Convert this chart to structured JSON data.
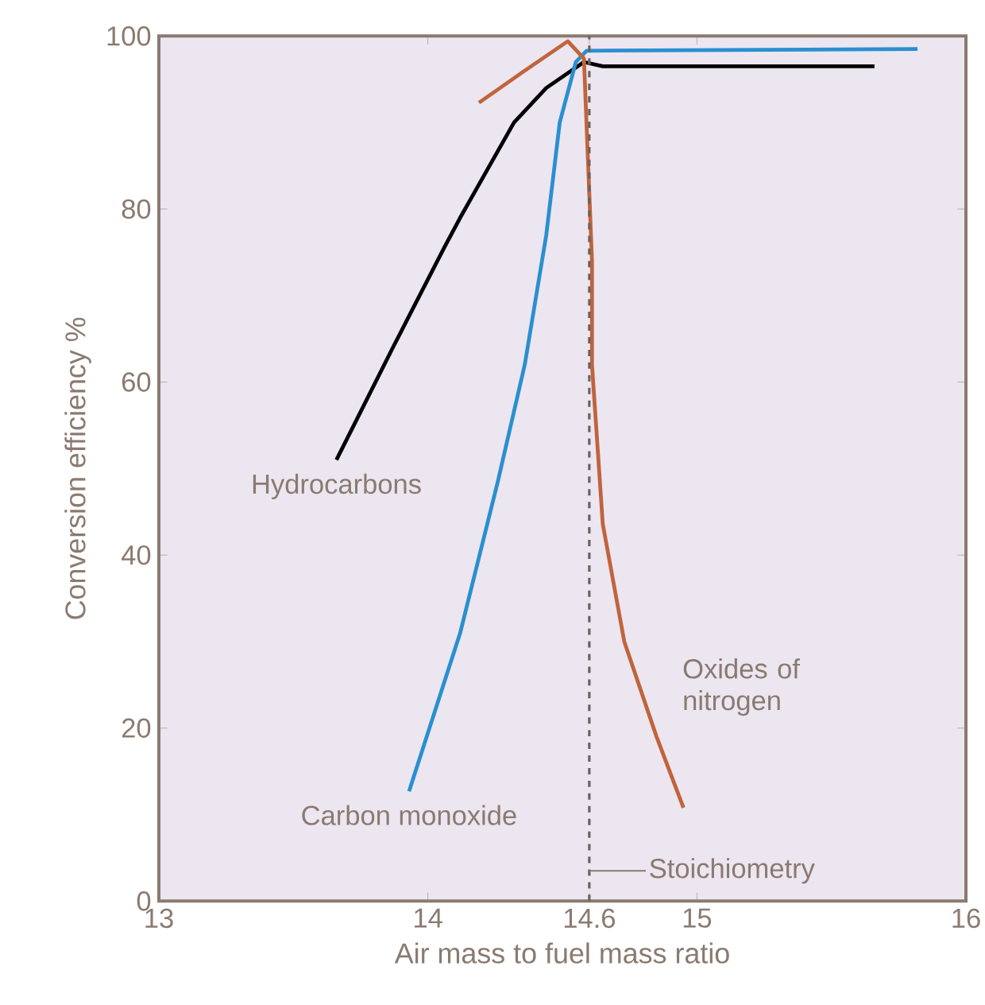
{
  "chart_data": {
    "type": "line",
    "xlabel": "Air mass to fuel mass ratio",
    "ylabel": "Conversion efficiency %",
    "xlim": [
      13,
      16
    ],
    "ylim": [
      0,
      100
    ],
    "xticks": [
      13,
      14,
      14.6,
      15,
      16
    ],
    "yticks": [
      0,
      20,
      40,
      60,
      80,
      100
    ],
    "grid": false,
    "legend": false,
    "marker": "none",
    "line_style": "solid",
    "series": [
      {
        "name": "Hydrocarbons",
        "color": "#000000",
        "x": [
          13.66,
          13.87,
          14.06,
          14.12,
          14.32,
          14.44,
          14.58,
          14.65,
          15.66
        ],
        "values": [
          51,
          64,
          75.5,
          79,
          90,
          94,
          97,
          96.5,
          96.5
        ]
      },
      {
        "name": "Carbon monoxide",
        "color": "#2a8fd0",
        "x": [
          13.93,
          14.12,
          14.26,
          14.36,
          14.44,
          14.49,
          14.55,
          14.59,
          15.82
        ],
        "values": [
          12.7,
          31,
          48.5,
          62,
          77,
          90,
          97,
          98.3,
          98.5
        ]
      },
      {
        "name": "Oxides of nitrogen",
        "color": "#c0643c",
        "x": [
          14.19,
          14.36,
          14.52,
          14.58,
          14.61,
          14.61,
          14.65,
          14.73,
          14.85,
          14.95
        ],
        "values": [
          92.3,
          96,
          99.4,
          97.4,
          74,
          62,
          43.6,
          30,
          19,
          10.8
        ]
      }
    ],
    "ref_lines": [
      {
        "axis": "x",
        "value": 14.6,
        "label": "Stoichiometry",
        "color": "#6a625e",
        "line_style": "dashed"
      }
    ]
  }
}
